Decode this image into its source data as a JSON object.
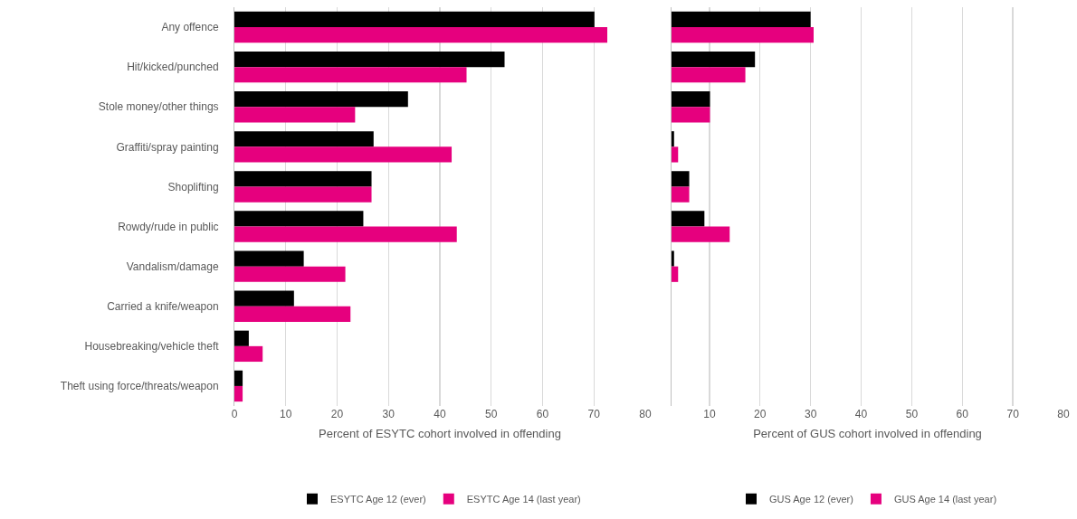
{
  "chart_data": [
    {
      "type": "bar",
      "orientation": "horizontal",
      "xlabel": "Percent of ESYTC cohort involved in offending",
      "categories": [
        "Any offence",
        "Hit/kicked/punched",
        "Stole money/other things",
        "Graffiti/spray painting",
        "Shoplifting",
        "Rowdy/rude in public",
        "Vandalism/damage",
        "Carried a knife/weapon",
        "Housebreaking/vehicle theft",
        "Theft using force/threats/weapon"
      ],
      "series": [
        {
          "name": "ESYTC Age 12 (ever)",
          "color": "#000000",
          "values": [
            70.1,
            52.6,
            33.8,
            27.1,
            26.7,
            25.1,
            13.5,
            11.6,
            2.8,
            1.6
          ]
        },
        {
          "name": "ESYTC Age 14 (last year)",
          "color": "#e6007e",
          "values": [
            72.6,
            45.2,
            23.5,
            42.3,
            26.7,
            43.3,
            21.6,
            22.6,
            5.5,
            1.6
          ]
        }
      ],
      "xlim": [
        0,
        80
      ],
      "xticks": [
        0,
        10,
        20,
        30,
        40,
        50,
        60,
        70,
        80
      ],
      "grid": "x",
      "legend": "bottom"
    },
    {
      "type": "bar",
      "orientation": "horizontal",
      "xlabel": "Percent of GUS cohort involved in offending",
      "categories": [
        null,
        null,
        null,
        null,
        null,
        null,
        null,
        null,
        null,
        null
      ],
      "series": [
        {
          "name": "GUS Age 12 (ever)",
          "color": "#000000",
          "values": [
            30.0,
            19.0,
            10.1,
            3.0,
            6.0,
            9.0,
            3.0,
            null,
            null,
            null
          ]
        },
        {
          "name": "GUS Age 14 (last year)",
          "color": "#e6007e",
          "values": [
            30.6,
            17.1,
            10.1,
            3.8,
            6.0,
            14.0,
            3.8,
            null,
            null,
            null
          ]
        }
      ],
      "xlim": [
        2.5,
        80
      ],
      "xticks": [
        10,
        20,
        30,
        40,
        50,
        60,
        70,
        80
      ],
      "grid": "x",
      "legend": "bottom",
      "tick_labels": "x"
    }
  ]
}
